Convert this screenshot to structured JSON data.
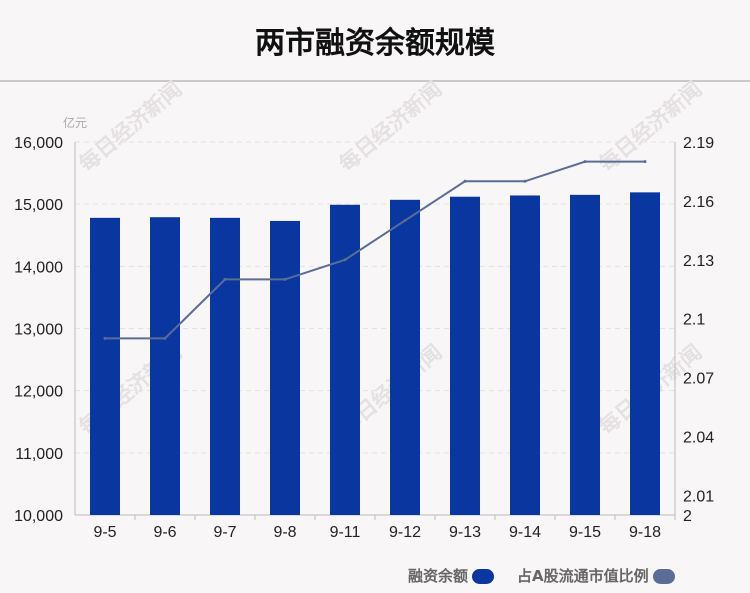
{
  "chart_data": {
    "type": "bar+line",
    "title": "两市融资余额规模",
    "y_unit_label": "亿元",
    "categories": [
      "9-5",
      "9-6",
      "9-7",
      "9-8",
      "9-11",
      "9-12",
      "9-13",
      "9-14",
      "9-15",
      "9-18"
    ],
    "series": [
      {
        "name": "融资余额",
        "type": "bar",
        "axis": "left",
        "color": "#0a36a0",
        "values": [
          14780,
          14790,
          14780,
          14730,
          14990,
          15070,
          15120,
          15140,
          15150,
          15190
        ]
      },
      {
        "name": "占A股流通市值比例",
        "type": "line",
        "axis": "right",
        "color": "#5b6c96",
        "values": [
          2.09,
          2.09,
          2.12,
          2.12,
          2.13,
          2.15,
          2.17,
          2.17,
          2.18,
          2.18
        ]
      }
    ],
    "y_left": {
      "ylim": [
        10000,
        16000
      ],
      "ticks": [
        "10,000",
        "11,000",
        "12,000",
        "13,000",
        "14,000",
        "15,000",
        "16,000"
      ]
    },
    "y_right": {
      "ylim": [
        2.0,
        2.19
      ],
      "ticks": [
        "2",
        "2.01",
        "2.04",
        "2.07",
        "2.1",
        "2.13",
        "2.16",
        "2.19"
      ],
      "tick_values": [
        2,
        2.01,
        2.04,
        2.07,
        2.1,
        2.13,
        2.16,
        2.19
      ]
    },
    "grid": true,
    "legend_position": "bottom-right"
  },
  "watermark": "每日经济新闻"
}
